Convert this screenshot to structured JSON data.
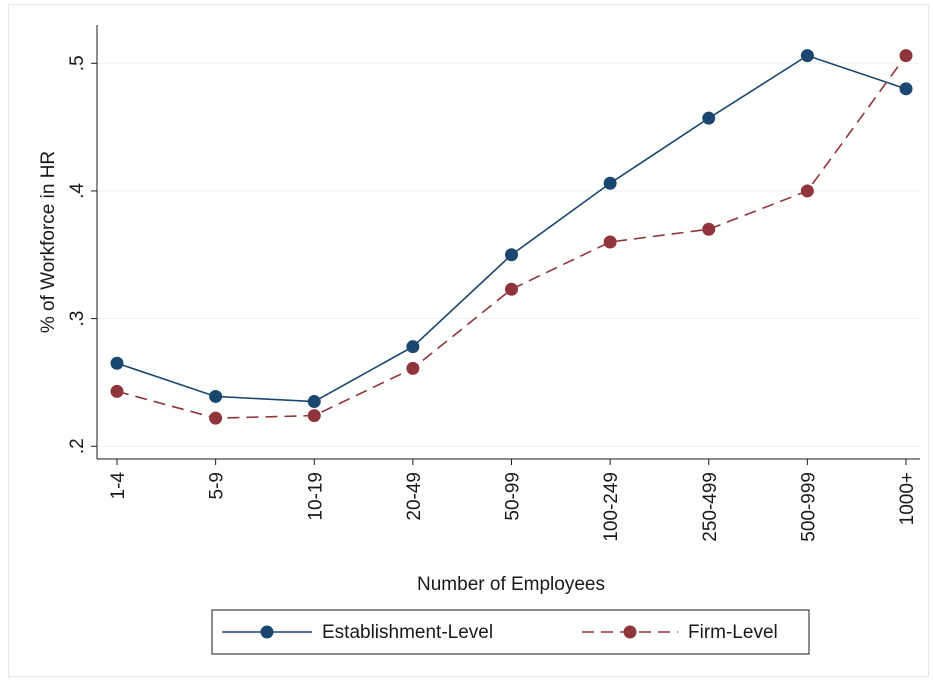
{
  "chart_data": {
    "type": "line",
    "xlabel": "Number of Employees",
    "ylabel": "% of Workforce in HR",
    "categories": [
      "1-4",
      "5-9",
      "10-19",
      "20-49",
      "50-99",
      "100-249",
      "250-499",
      "500-999",
      "1000+"
    ],
    "y_ticks": [
      ".2",
      ".3",
      ".4",
      ".5"
    ],
    "y_tick_values": [
      0.2,
      0.3,
      0.4,
      0.5
    ],
    "ylim": [
      0.19,
      0.53
    ],
    "grid": true,
    "legend_position": "bottom",
    "series": [
      {
        "name": "Establishment-Level",
        "values": [
          0.265,
          0.239,
          0.235,
          0.278,
          0.35,
          0.406,
          0.457,
          0.506,
          0.48
        ],
        "color": "#1a476f",
        "line_style": "solid",
        "marker": "circle"
      },
      {
        "name": "Firm-Level",
        "values": [
          0.243,
          0.222,
          0.224,
          0.261,
          0.323,
          0.36,
          0.37,
          0.4,
          0.506
        ],
        "color": "#90353b",
        "line_style": "dashed",
        "marker": "circle"
      }
    ]
  }
}
